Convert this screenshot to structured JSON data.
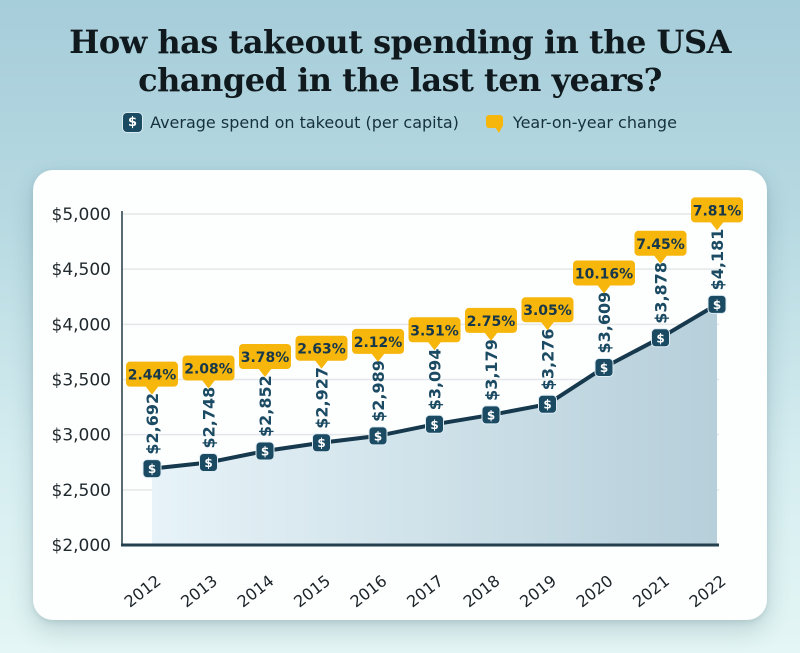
{
  "title": {
    "line1": "How has takeout spending in the USA",
    "line2": "changed in the last ten years?"
  },
  "legend": {
    "series1_label": "Average spend on takeout (per capita)",
    "series1_icon": "dollar-square-icon",
    "series1_color": "#1b4a63",
    "series2_label": "Year-on-year change",
    "series2_icon": "yellow-callout-icon",
    "series2_color": "#f6b60b"
  },
  "chart_data": {
    "type": "line",
    "title": "How has takeout spending in the USA changed in the last ten years?",
    "x": [
      "2012",
      "2013",
      "2014",
      "2015",
      "2016",
      "2017",
      "2018",
      "2019",
      "2020",
      "2021",
      "2022"
    ],
    "series": [
      {
        "name": "Average spend on takeout (per capita)",
        "values": [
          2692,
          2748,
          2852,
          2927,
          2989,
          3094,
          3179,
          3276,
          3609,
          3878,
          4181
        ],
        "point_labels": [
          "$2,692",
          "$2,748",
          "$2,852",
          "$2,927",
          "$2,989",
          "$3,094",
          "$3,179",
          "$3,276",
          "$3,609",
          "$3,878",
          "$4,181"
        ]
      },
      {
        "name": "Year-on-year change",
        "values": [
          2.44,
          2.08,
          3.78,
          2.63,
          2.12,
          3.51,
          2.75,
          3.05,
          10.16,
          7.45,
          7.81
        ],
        "point_labels": [
          "2.44%",
          "2.08%",
          "3.78%",
          "2.63%",
          "2.12%",
          "3.51%",
          "2.75%",
          "3.05%",
          "10.16%",
          "7.45%",
          "7.81%"
        ]
      }
    ],
    "ylim": [
      2000,
      5000
    ],
    "y_ticks": [
      {
        "value": 2000,
        "label": "$2,000"
      },
      {
        "value": 2500,
        "label": "$2,500"
      },
      {
        "value": 3000,
        "label": "$3,000"
      },
      {
        "value": 3500,
        "label": "$3,500"
      },
      {
        "value": 4000,
        "label": "$4,000"
      },
      {
        "value": 4500,
        "label": "$4,500"
      },
      {
        "value": 5000,
        "label": "$5,000"
      }
    ],
    "grid": true,
    "legend_position": "top",
    "marker_glyph": "$",
    "colors": {
      "line": "#16394e",
      "marker_fill": "#1b4a63",
      "marker_text": "#ffffff",
      "area_start": "#e7f3f8",
      "area_end": "#b6cfda",
      "bubble_fill": "#f6b60b",
      "bubble_text": "#17374a",
      "value_label": "#1b4a63",
      "tick_text": "#20292d",
      "grid_line": "#e4e7e9",
      "x_axis": "#24404f",
      "y_axis": "#5a6a72"
    }
  }
}
